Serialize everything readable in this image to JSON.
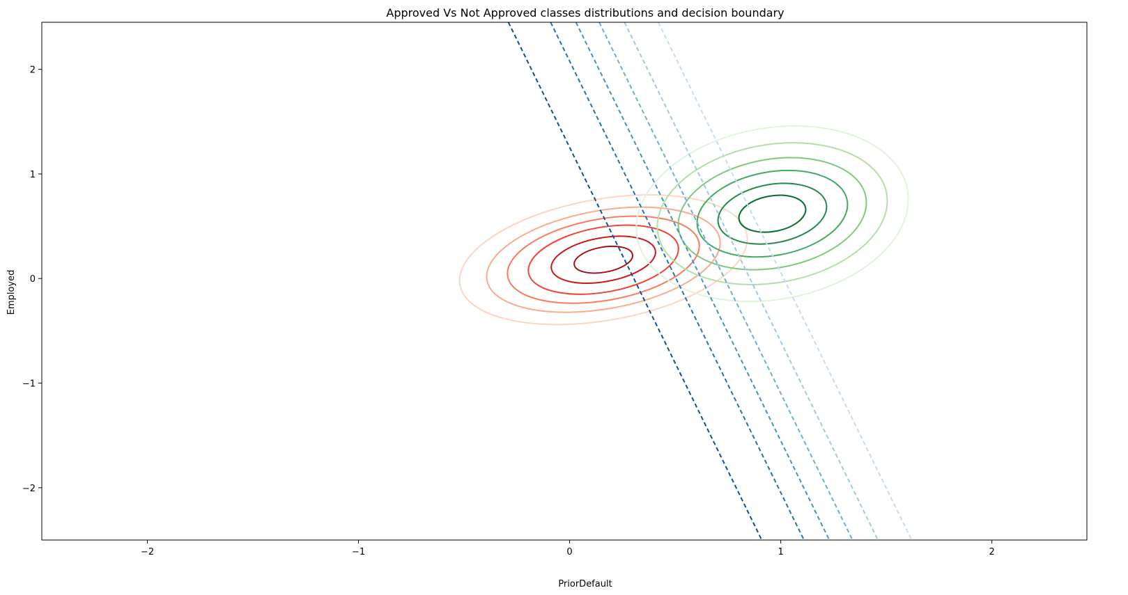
{
  "chart_data": {
    "type": "contour",
    "title": "Approved Vs Not Approved classes distributions and decision boundary",
    "xlabel": "PriorDefault",
    "ylabel": "Employed",
    "xlim": [
      -2.5,
      2.45
    ],
    "ylim": [
      -2.5,
      2.45
    ],
    "xticks": [
      -2,
      -1,
      0,
      1,
      2
    ],
    "yticks": [
      -2,
      -1,
      0,
      1,
      2
    ],
    "tick_labels_x": [
      "−2",
      "−1",
      "0",
      "1",
      "2"
    ],
    "tick_labels_y": [
      "−2",
      "−1",
      "0",
      "1",
      "2"
    ],
    "grid": false,
    "series": [
      {
        "label": "Not Approved",
        "colormap": "Reds",
        "center": [
          0.16,
          0.18
        ],
        "rotation_deg": 10,
        "contours": [
          {
            "rx": 0.69,
            "ry": 0.58,
            "color": "#fdd5c3"
          },
          {
            "rx": 0.56,
            "ry": 0.47,
            "color": "#fcaa8d"
          },
          {
            "rx": 0.46,
            "ry": 0.39,
            "color": "#fb7c5c"
          },
          {
            "rx": 0.36,
            "ry": 0.31,
            "color": "#ef4533"
          },
          {
            "rx": 0.25,
            "ry": 0.21,
            "color": "#cb181d"
          },
          {
            "rx": 0.14,
            "ry": 0.12,
            "color": "#a50f15"
          }
        ]
      },
      {
        "label": "Approved",
        "colormap": "Greens",
        "center": [
          0.96,
          0.62
        ],
        "rotation_deg": 10,
        "contours": [
          {
            "rx": 0.65,
            "ry": 0.82,
            "color": "#e0f3db"
          },
          {
            "rx": 0.55,
            "ry": 0.66,
            "color": "#b2dfa5"
          },
          {
            "rx": 0.45,
            "ry": 0.52,
            "color": "#7fc97f"
          },
          {
            "rx": 0.36,
            "ry": 0.4,
            "color": "#41ab5d"
          },
          {
            "rx": 0.26,
            "ry": 0.28,
            "color": "#238b45"
          },
          {
            "rx": 0.16,
            "ry": 0.17,
            "color": "#006d2c"
          }
        ]
      }
    ],
    "decision_boundaries": [
      {
        "x_top": -0.29,
        "x_bottom": 0.91,
        "color": "#08519c"
      },
      {
        "x_top": -0.09,
        "x_bottom": 1.11,
        "color": "#2171b5"
      },
      {
        "x_top": 0.03,
        "x_bottom": 1.23,
        "color": "#4292c6"
      },
      {
        "x_top": 0.14,
        "x_bottom": 1.34,
        "color": "#6baed6"
      },
      {
        "x_top": 0.26,
        "x_bottom": 1.46,
        "color": "#9ecae1"
      },
      {
        "x_top": 0.42,
        "x_bottom": 1.62,
        "color": "#c6dbef"
      }
    ],
    "boundary_style": "dashed"
  }
}
